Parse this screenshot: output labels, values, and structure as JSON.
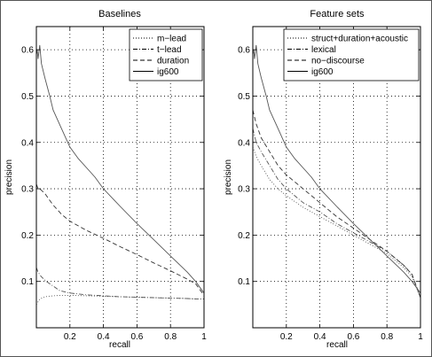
{
  "chart_data": [
    {
      "type": "line",
      "title": "Baselines",
      "xlabel": "recall",
      "ylabel": "precision",
      "xlim": [
        0,
        1
      ],
      "ylim": [
        0,
        0.65
      ],
      "xticks": [
        0.2,
        0.4,
        0.6,
        0.8,
        1
      ],
      "xtick_labels": [
        "0.2",
        "0.4",
        "0.6",
        "0.8",
        "1"
      ],
      "yticks": [
        0.1,
        0.2,
        0.3,
        0.4,
        0.5,
        0.6
      ],
      "ytick_labels": [
        "0.1",
        "0.2",
        "0.3",
        "0.4",
        "0.5",
        "0.6"
      ],
      "grid": true,
      "legend_position": "top-right",
      "series": [
        {
          "name": "m−lead",
          "style": "dotted",
          "color": "#555555",
          "x": [
            0.0,
            0.02,
            0.05,
            0.1,
            0.15,
            0.2,
            0.3,
            0.4,
            0.5,
            0.6,
            0.7,
            0.8,
            0.9,
            0.97,
            1.0
          ],
          "y": [
            0.05,
            0.062,
            0.067,
            0.069,
            0.07,
            0.07,
            0.069,
            0.068,
            0.067,
            0.066,
            0.065,
            0.064,
            0.063,
            0.062,
            0.062
          ]
        },
        {
          "name": "t−lead",
          "style": "dashdot",
          "color": "#555555",
          "x": [
            0.0,
            0.01,
            0.03,
            0.06,
            0.1,
            0.14,
            0.2,
            0.3,
            0.4,
            0.5,
            0.6,
            0.7,
            0.8,
            0.9,
            0.97,
            1.0
          ],
          "y": [
            0.13,
            0.12,
            0.11,
            0.1,
            0.09,
            0.08,
            0.075,
            0.071,
            0.069,
            0.067,
            0.066,
            0.065,
            0.064,
            0.063,
            0.062,
            0.062
          ]
        },
        {
          "name": "duration",
          "style": "dashed",
          "color": "#333333",
          "x": [
            0.0,
            0.01,
            0.02,
            0.05,
            0.08,
            0.1,
            0.15,
            0.2,
            0.3,
            0.4,
            0.5,
            0.6,
            0.7,
            0.8,
            0.9,
            0.95,
            1.0
          ],
          "y": [
            0.31,
            0.3,
            0.3,
            0.29,
            0.275,
            0.265,
            0.245,
            0.23,
            0.21,
            0.193,
            0.175,
            0.158,
            0.14,
            0.123,
            0.105,
            0.095,
            0.07
          ]
        },
        {
          "name": "ig600",
          "style": "solid",
          "color": "#555555",
          "x": [
            0.0,
            0.005,
            0.01,
            0.02,
            0.03,
            0.05,
            0.08,
            0.1,
            0.15,
            0.2,
            0.25,
            0.3,
            0.35,
            0.4,
            0.5,
            0.6,
            0.7,
            0.8,
            0.9,
            0.95,
            1.0
          ],
          "y": [
            0.59,
            0.6,
            0.58,
            0.61,
            0.57,
            0.54,
            0.5,
            0.47,
            0.43,
            0.39,
            0.365,
            0.345,
            0.325,
            0.3,
            0.262,
            0.225,
            0.19,
            0.155,
            0.12,
            0.1,
            0.075
          ]
        }
      ]
    },
    {
      "type": "line",
      "title": "Feature sets",
      "xlabel": "recall",
      "ylabel": "precision",
      "xlim": [
        0,
        1
      ],
      "ylim": [
        0,
        0.65
      ],
      "xticks": [
        0.2,
        0.4,
        0.6,
        0.8,
        1
      ],
      "xtick_labels": [
        "0.2",
        "0.4",
        "0.6",
        "0.8",
        "1"
      ],
      "yticks": [
        0.1,
        0.2,
        0.3,
        0.4,
        0.5,
        0.6
      ],
      "ytick_labels": [
        "0.1",
        "0.2",
        "0.3",
        "0.4",
        "0.5",
        "0.6"
      ],
      "grid": true,
      "legend_position": "top-right",
      "series": [
        {
          "name": "struct+duration+acoustic",
          "style": "dotted",
          "color": "#555555",
          "x": [
            0.0,
            0.02,
            0.05,
            0.1,
            0.15,
            0.2,
            0.3,
            0.4,
            0.5,
            0.6,
            0.7,
            0.8,
            0.9,
            0.95,
            1.0
          ],
          "y": [
            0.39,
            0.37,
            0.35,
            0.32,
            0.3,
            0.285,
            0.26,
            0.24,
            0.22,
            0.2,
            0.18,
            0.16,
            0.13,
            0.11,
            0.065
          ]
        },
        {
          "name": "lexical",
          "style": "dashdot",
          "color": "#555555",
          "x": [
            0.0,
            0.02,
            0.05,
            0.1,
            0.15,
            0.2,
            0.3,
            0.4,
            0.5,
            0.6,
            0.7,
            0.8,
            0.9,
            0.95,
            1.0
          ],
          "y": [
            0.43,
            0.4,
            0.38,
            0.35,
            0.32,
            0.3,
            0.27,
            0.25,
            0.225,
            0.205,
            0.185,
            0.165,
            0.135,
            0.115,
            0.065
          ]
        },
        {
          "name": "no−discourse",
          "style": "dashed",
          "color": "#333333",
          "x": [
            0.0,
            0.02,
            0.05,
            0.1,
            0.15,
            0.2,
            0.3,
            0.4,
            0.5,
            0.6,
            0.7,
            0.8,
            0.9,
            0.95,
            1.0
          ],
          "y": [
            0.47,
            0.44,
            0.41,
            0.38,
            0.35,
            0.33,
            0.3,
            0.27,
            0.24,
            0.215,
            0.19,
            0.165,
            0.135,
            0.115,
            0.065
          ]
        },
        {
          "name": "ig600",
          "style": "solid",
          "color": "#555555",
          "x": [
            0.0,
            0.005,
            0.01,
            0.02,
            0.03,
            0.05,
            0.08,
            0.1,
            0.15,
            0.2,
            0.25,
            0.3,
            0.35,
            0.4,
            0.5,
            0.6,
            0.7,
            0.8,
            0.9,
            0.95,
            1.0
          ],
          "y": [
            0.59,
            0.6,
            0.58,
            0.61,
            0.57,
            0.54,
            0.5,
            0.47,
            0.43,
            0.39,
            0.365,
            0.345,
            0.325,
            0.3,
            0.262,
            0.225,
            0.19,
            0.155,
            0.12,
            0.1,
            0.075
          ]
        }
      ]
    }
  ]
}
